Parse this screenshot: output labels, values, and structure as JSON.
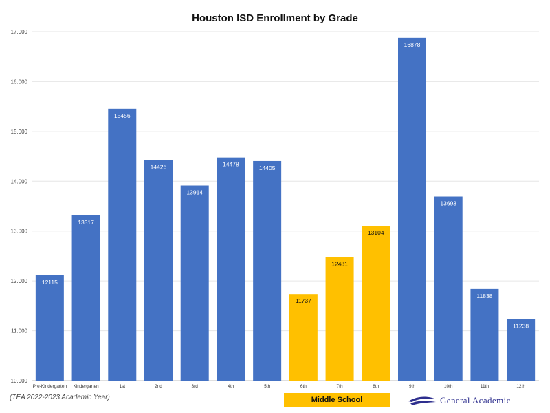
{
  "chart_data": {
    "type": "bar",
    "title": "Houston ISD Enrollment by Grade",
    "xlabel": "",
    "ylabel": "",
    "categories": [
      "Pre-Kindergarten",
      "Kindergarten",
      "1st",
      "2nd",
      "3rd",
      "4th",
      "5th",
      "6th",
      "7th",
      "8th",
      "9th",
      "10th",
      "11th",
      "12th"
    ],
    "values": [
      12115,
      13317,
      15456,
      14426,
      13914,
      14478,
      14405,
      11737,
      12481,
      13104,
      16878,
      13693,
      11838,
      11238
    ],
    "data_labels": [
      "12115",
      "13317",
      "15456",
      "14426",
      "13914",
      "14478",
      "14405",
      "11737",
      "12481",
      "13104",
      "16878",
      "13693",
      "11838",
      "11238"
    ],
    "highlighted": [
      false,
      false,
      false,
      false,
      false,
      false,
      false,
      true,
      true,
      true,
      false,
      false,
      false,
      false
    ],
    "ylim": [
      10000,
      17000
    ],
    "yticks": [
      10000,
      11000,
      12000,
      13000,
      14000,
      15000,
      16000,
      17000
    ],
    "ytick_labels": [
      "10.000",
      "11.000",
      "12.000",
      "13.000",
      "14.000",
      "15.000",
      "16.000",
      "17.000"
    ],
    "grid": true,
    "colors": {
      "default": "#4472c4",
      "highlight": "#ffc000"
    }
  },
  "annotations": {
    "source_note": "(TEA 2022-2023 Academic Year)",
    "group_label": "Middle School",
    "brand_name": "General Academic",
    "brand_icon": "swoosh-logo-icon",
    "brand_color": "#2e2f8e"
  }
}
